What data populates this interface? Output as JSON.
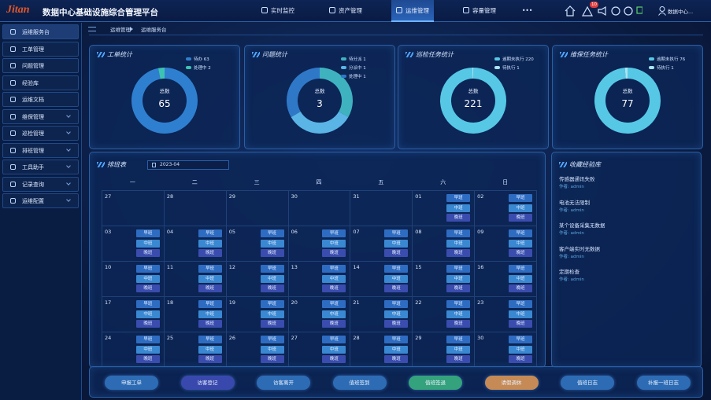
{
  "header": {
    "logo": "Jitan",
    "title": "数据中心基础设施综合管理平台",
    "nav": [
      "实时监控",
      "资产管理",
      "运维管理",
      "容量管理",
      "•••"
    ],
    "active_nav": 2,
    "badge": "10",
    "user": "数据中心..."
  },
  "sidebar": {
    "active": 0,
    "items": [
      {
        "label": "运维服务台",
        "expandable": false
      },
      {
        "label": "工单管理",
        "expandable": false
      },
      {
        "label": "问题管理",
        "expandable": false
      },
      {
        "label": "经验库",
        "expandable": false
      },
      {
        "label": "运维文档",
        "expandable": false
      },
      {
        "label": "维保管理",
        "expandable": true
      },
      {
        "label": "巡检管理",
        "expandable": true
      },
      {
        "label": "排班管理",
        "expandable": true
      },
      {
        "label": "工具助手",
        "expandable": true
      },
      {
        "label": "记录查询",
        "expandable": true
      },
      {
        "label": "运维配置",
        "expandable": true
      }
    ]
  },
  "breadcrumb": [
    "运维管理",
    "运维服务台"
  ],
  "chart_data": [
    {
      "type": "pie",
      "title": "工单统计",
      "categories": [
        "待办",
        "处理中"
      ],
      "values": [
        63,
        2
      ],
      "colors": [
        "#2f7fd0",
        "#3cc3b4"
      ],
      "center_label": "总数",
      "total": 65
    },
    {
      "type": "pie",
      "title": "问题统计",
      "categories": [
        "待分派",
        "分派中",
        "处理中"
      ],
      "values": [
        1,
        1,
        1
      ],
      "colors": [
        "#3fb2c0",
        "#5ab4e6",
        "#2f78c8"
      ],
      "center_label": "总数",
      "total": 3
    },
    {
      "type": "pie",
      "title": "巡检任务统计",
      "categories": [
        "逾期未执行",
        "待执行"
      ],
      "values": [
        220,
        1
      ],
      "colors": [
        "#56c8e6",
        "#a8e4f2"
      ],
      "center_label": "总数",
      "total": 221
    },
    {
      "type": "pie",
      "title": "维保任务统计",
      "categories": [
        "逾期未执行",
        "待执行"
      ],
      "values": [
        76,
        1
      ],
      "colors": [
        "#56c8e6",
        "#a8e4f2"
      ],
      "center_label": "总数",
      "total": 77
    }
  ],
  "schedule": {
    "title": "排班表",
    "month": "2023-04",
    "weekdays": [
      "一",
      "二",
      "三",
      "四",
      "五",
      "六",
      "日"
    ],
    "shift_names": [
      "早班",
      "中班",
      "晚班"
    ],
    "shift_colors": [
      "#2e6cc2",
      "#3a88d2",
      "#3a4cae"
    ],
    "weeks": [
      [
        {
          "day": "27",
          "on_duty": false
        },
        {
          "day": "28",
          "on_duty": false
        },
        {
          "day": "29",
          "on_duty": false
        },
        {
          "day": "30",
          "on_duty": false
        },
        {
          "day": "31",
          "on_duty": false
        },
        {
          "day": "01",
          "on_duty": true
        },
        {
          "day": "02",
          "on_duty": true
        }
      ],
      [
        {
          "day": "03",
          "on_duty": true
        },
        {
          "day": "04",
          "on_duty": true
        },
        {
          "day": "05",
          "on_duty": true
        },
        {
          "day": "06",
          "on_duty": true
        },
        {
          "day": "07",
          "on_duty": true
        },
        {
          "day": "08",
          "on_duty": true
        },
        {
          "day": "09",
          "on_duty": true
        }
      ],
      [
        {
          "day": "10",
          "on_duty": true
        },
        {
          "day": "11",
          "on_duty": true
        },
        {
          "day": "12",
          "on_duty": true
        },
        {
          "day": "13",
          "on_duty": true
        },
        {
          "day": "14",
          "on_duty": true
        },
        {
          "day": "15",
          "on_duty": true
        },
        {
          "day": "16",
          "on_duty": true
        }
      ],
      [
        {
          "day": "17",
          "on_duty": true
        },
        {
          "day": "18",
          "on_duty": true
        },
        {
          "day": "19",
          "on_duty": true
        },
        {
          "day": "20",
          "on_duty": true
        },
        {
          "day": "21",
          "on_duty": true
        },
        {
          "day": "22",
          "on_duty": true
        },
        {
          "day": "23",
          "on_duty": true
        }
      ],
      [
        {
          "day": "24",
          "on_duty": true
        },
        {
          "day": "25",
          "on_duty": true
        },
        {
          "day": "26",
          "on_duty": true
        },
        {
          "day": "27",
          "on_duty": true
        },
        {
          "day": "28",
          "on_duty": true
        },
        {
          "day": "29",
          "on_duty": true
        },
        {
          "day": "30",
          "on_duty": true
        }
      ]
    ]
  },
  "favorites": {
    "title": "收藏经验库",
    "items": [
      {
        "title": "传感器通讯失败",
        "author": "作者: admin"
      },
      {
        "title": "电池无法限制",
        "author": "作者: admin"
      },
      {
        "title": "某个设备采集无数据",
        "author": "作者: admin"
      },
      {
        "title": "客户端实时无数据",
        "author": "作者: admin"
      },
      {
        "title": "定期检查",
        "author": "作者: admin"
      }
    ]
  },
  "actions": [
    {
      "label": "申报工单",
      "color": "#2d6cb4"
    },
    {
      "label": "访客登记",
      "color": "#3948ad"
    },
    {
      "label": "访客离开",
      "color": "#2d6cb4"
    },
    {
      "label": "值班签到",
      "color": "#2d6cb4"
    },
    {
      "label": "值班签退",
      "color": "#34a27c"
    },
    {
      "label": "请假调休",
      "color": "#c58a55"
    },
    {
      "label": "值班日志",
      "color": "#2d6cb4"
    },
    {
      "label": "补报一班日志",
      "color": "#2d6cb4"
    }
  ]
}
